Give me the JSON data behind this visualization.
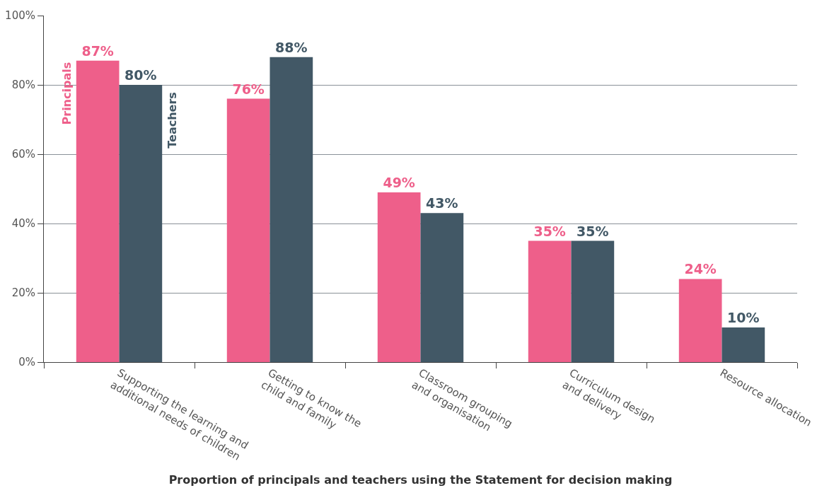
{
  "chart_data": {
    "type": "bar",
    "xlabel": "Proportion of principals and teachers using the Statement for decision making",
    "categories": [
      "Supporting the learning and\nadditional needs of children",
      "Getting to know the\nchild and family",
      "Classroom grouping\nand organisation",
      "Curriculum design\nand delivery",
      "Resource allocation"
    ],
    "series": [
      {
        "name": "Principals",
        "color": "#ee5f8a",
        "values": [
          87,
          76,
          49,
          35,
          24
        ],
        "value_labels": [
          "87%",
          "76%",
          "49%",
          "35%",
          "24%"
        ]
      },
      {
        "name": "Teachers",
        "color": "#425866",
        "values": [
          80,
          88,
          43,
          35,
          10
        ],
        "value_labels": [
          "80%",
          "88%",
          "43%",
          "35%",
          "10%"
        ]
      }
    ],
    "ylim": [
      0,
      100
    ],
    "yticks": [
      {
        "value": 0,
        "label": "0%"
      },
      {
        "value": 20,
        "label": "20%"
      },
      {
        "value": 40,
        "label": "40%"
      },
      {
        "value": 60,
        "label": "60%"
      },
      {
        "value": 80,
        "label": "80%"
      },
      {
        "value": 100,
        "label": "100%"
      }
    ],
    "grid": "y",
    "legend": false
  }
}
